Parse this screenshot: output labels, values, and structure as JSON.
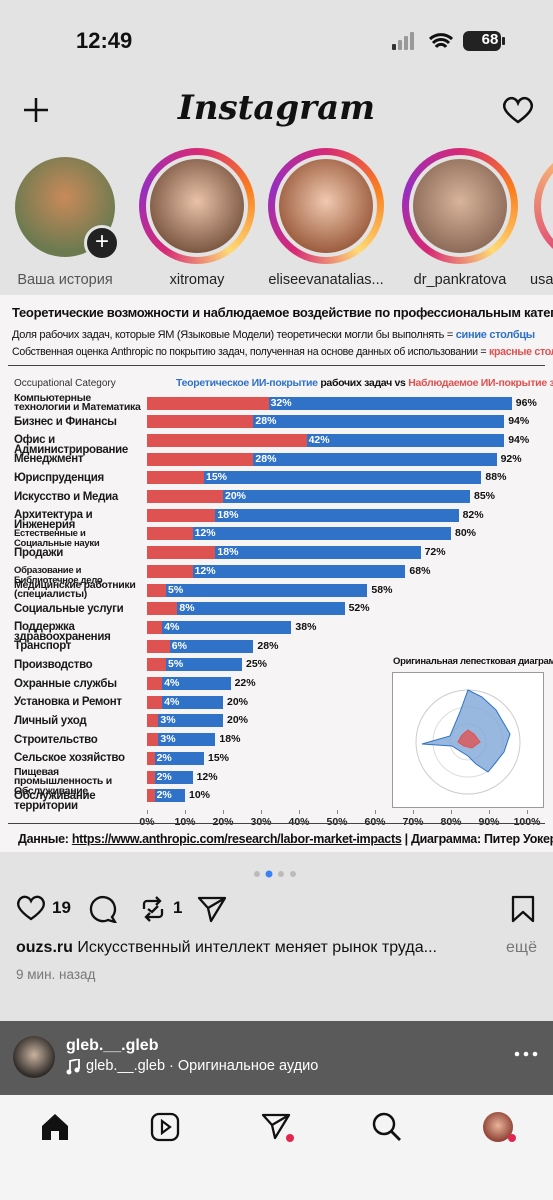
{
  "status_bar": {
    "time": "12:49",
    "battery": "68"
  },
  "header": {
    "logo": "Instagram"
  },
  "stories": [
    {
      "name": "Ваша история"
    },
    {
      "name": "xitromay"
    },
    {
      "name": "eliseevanatalias..."
    },
    {
      "name": "dr_pankratova"
    },
    {
      "name": "usa"
    }
  ],
  "chart_data": {
    "type": "bar",
    "orientation": "horizontal",
    "overlay": true,
    "title": "Теоретические возможности и наблюдаемое воздействие по профессиональным категориям",
    "subtitle_lines": [
      {
        "text": "Доля рабочих задач, которые ЯМ (Языковые Модели) теоретически могли бы выполнять = ",
        "highlight": "синие столбцы"
      },
      {
        "text": "Собственная оценка Anthropic по покрытию задач, полученная на основе данных об использовании = ",
        "highlight": "красные столбцы"
      }
    ],
    "category_axis_label": "Occupational Category",
    "legend_joiner": " рабочих задач vs ",
    "categories": [
      "Компьютерные технологии и Математика",
      "Бизнес и Финансы",
      "Офис и Администрирование",
      "Менеджмент",
      "Юриспруденция",
      "Искусство и Медиа",
      "Архитектура и Инженерия",
      "Естественные и Социальные науки",
      "Продажи",
      "Образование и Библиотечное дело",
      "Медицинские работники (специалисты)",
      "Социальные услуги",
      "Поддержка здравоохранения",
      "Транспорт",
      "Производство",
      "Охранные службы",
      "Установка и Ремонт",
      "Личный уход",
      "Строительство",
      "Сельское хозяйство",
      "Пищевая промышленность и Обслуживание",
      "Обслуживание территории"
    ],
    "series": [
      {
        "name": "Теоретическое ИИ-покрытие",
        "color": "#2f72c8",
        "values": [
          96,
          94,
          94,
          92,
          88,
          85,
          82,
          80,
          72,
          68,
          58,
          52,
          38,
          28,
          25,
          22,
          20,
          20,
          18,
          15,
          12,
          10
        ],
        "value_labels": [
          "96%",
          "94%",
          "94%",
          "92%",
          "88%",
          "85%",
          "82%",
          "80%",
          "72%",
          "68%",
          "58%",
          "52%",
          "38%",
          "28%",
          "25%",
          "22%",
          "20%",
          "20%",
          "18%",
          "15%",
          "12%",
          "10%"
        ]
      },
      {
        "name": "Наблюдаемое ИИ-покрытие задач",
        "color": "#df5252",
        "values": [
          32,
          28,
          42,
          28,
          15,
          20,
          18,
          12,
          18,
          12,
          5,
          8,
          4,
          6,
          5,
          4,
          4,
          3,
          3,
          2,
          2,
          2
        ],
        "value_labels": [
          "32%",
          "28%",
          "42%",
          "28%",
          "15%",
          "20%",
          "18%",
          "12%",
          "18%",
          "12%",
          "5%",
          "8%",
          "4%",
          "6%",
          "5%",
          "4%",
          "4%",
          "3%",
          "3%",
          "2%",
          "2%",
          "2%"
        ]
      }
    ],
    "xlim": [
      0,
      100
    ],
    "xticks": [
      {
        "value": 0,
        "label": "0%"
      },
      {
        "value": 10,
        "label": "10%"
      },
      {
        "value": 20,
        "label": "20%"
      },
      {
        "value": 30,
        "label": "30%"
      },
      {
        "value": 40,
        "label": "40%"
      },
      {
        "value": 50,
        "label": "50%"
      },
      {
        "value": 60,
        "label": "60%"
      },
      {
        "value": 70,
        "label": "70%"
      },
      {
        "value": 80,
        "label": "80%"
      },
      {
        "value": 90,
        "label": "90%"
      },
      {
        "value": 100,
        "label": "100%"
      }
    ],
    "inset_title": "Оригинальная лепестковая диаграмма",
    "source": {
      "prefix": "Данные: ",
      "url": "https://www.anthropic.com/research/labor-market-impacts",
      "suffix": " | Диаграмма: Питер Уокер"
    }
  },
  "post": {
    "likes": "19",
    "reposts": "1",
    "author": "ouzs.ru",
    "caption": "Искусственный интеллект меняет рынок труда...",
    "more": "ещё",
    "time": "9 мин. назад"
  },
  "audio": {
    "user": "gleb.__.gleb",
    "track": "gleb.__.gleb · Оригинальное аудио"
  }
}
